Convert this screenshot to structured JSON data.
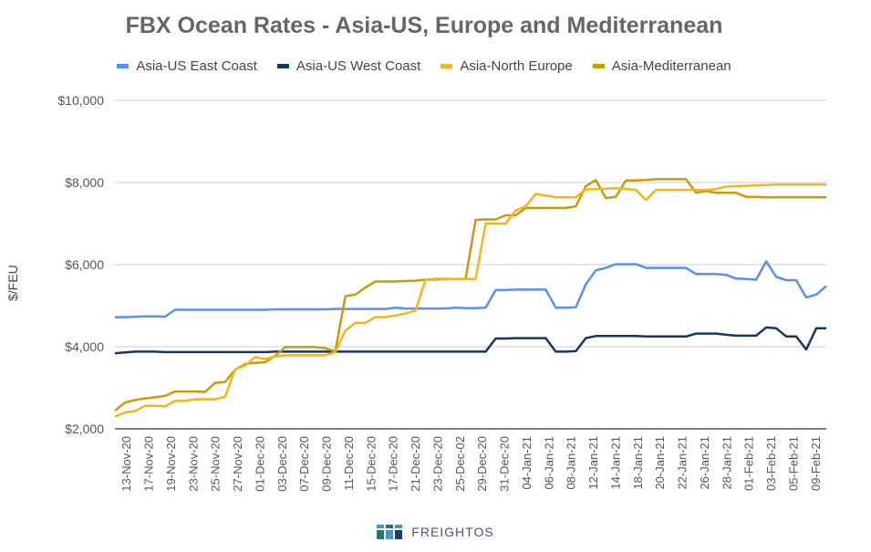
{
  "colors": {
    "east": "#5b8ff0",
    "west": "#19365e",
    "neu": "#f4b51c",
    "med": "#c99a0d",
    "grid": "#cccccc",
    "axis": "#555555"
  },
  "chart_data": {
    "type": "line",
    "title": "FBX Ocean Rates - Asia-US, Europe and Mediterranean",
    "ylabel": "$/FEU",
    "xlabel": "",
    "ylim": [
      2000,
      10000
    ],
    "yticks": [
      2000,
      4000,
      6000,
      8000,
      10000
    ],
    "ytick_labels": [
      "$2,000",
      "$4,000",
      "$6,000",
      "$8,000",
      "$10,000"
    ],
    "grid": true,
    "legend_position": "top",
    "x_tick_labels": [
      "13-Nov-20",
      "17-Nov-20",
      "19-Nov-20",
      "23-Nov-20",
      "25-Nov-20",
      "27-Nov-20",
      "01-Dec-20",
      "03-Dec-20",
      "07-Dec-20",
      "09-Dec-20",
      "11-Dec-20",
      "15-Dec-20",
      "17-Dec-20",
      "21-Dec-20",
      "23-Dec-20",
      "25-Dec-02",
      "29-Dec-20",
      "31-Dec-20",
      "04-Jan-21",
      "06-Jan-21",
      "08-Jan-21",
      "12-Jan-21",
      "14-Jan-21",
      "18-Jan-21",
      "20-Jan-21",
      "22-Jan-21",
      "26-Jan-21",
      "28-Jan-21",
      "01-Feb-21",
      "03-Feb-21",
      "05-Feb-21",
      "09-Feb-21"
    ],
    "series": [
      {
        "name": "Asia-US East Coast",
        "values": [
          4720,
          4720,
          4730,
          4740,
          4740,
          4730,
          4900,
          4900,
          4900,
          4900,
          4900,
          4900,
          4900,
          4900,
          4900,
          4900,
          4910,
          4910,
          4910,
          4910,
          4910,
          4910,
          4920,
          4920,
          4920,
          4920,
          4920,
          4920,
          4950,
          4930,
          4930,
          4930,
          4930,
          4930,
          4950,
          4940,
          4940,
          4950,
          5380,
          5380,
          5390,
          5390,
          5390,
          5390,
          4950,
          4950,
          4960,
          5520,
          5860,
          5920,
          6010,
          6010,
          6010,
          5920,
          5920,
          5920,
          5920,
          5920,
          5770,
          5770,
          5770,
          5750,
          5660,
          5650,
          5630,
          6080,
          5700,
          5620,
          5620,
          5200,
          5270,
          5480
        ]
      },
      {
        "name": "Asia-US West Coast",
        "values": [
          3840,
          3860,
          3880,
          3880,
          3880,
          3870,
          3870,
          3870,
          3870,
          3870,
          3870,
          3870,
          3870,
          3870,
          3870,
          3870,
          3880,
          3880,
          3880,
          3880,
          3880,
          3880,
          3880,
          3880,
          3880,
          3880,
          3880,
          3880,
          3880,
          3880,
          3880,
          3880,
          3880,
          3880,
          3880,
          3880,
          3880,
          3880,
          4200,
          4200,
          4210,
          4210,
          4210,
          4210,
          3880,
          3880,
          3890,
          4210,
          4260,
          4260,
          4260,
          4260,
          4260,
          4250,
          4250,
          4250,
          4250,
          4250,
          4320,
          4320,
          4320,
          4290,
          4270,
          4270,
          4270,
          4470,
          4450,
          4250,
          4250,
          3930,
          4450,
          4450
        ]
      },
      {
        "name": "Asia-North Europe",
        "values": [
          2300,
          2400,
          2430,
          2560,
          2560,
          2550,
          2680,
          2680,
          2720,
          2720,
          2720,
          2780,
          3450,
          3540,
          3750,
          3700,
          3760,
          3790,
          3790,
          3790,
          3790,
          3790,
          3870,
          4390,
          4580,
          4580,
          4720,
          4720,
          4760,
          4810,
          4880,
          5630,
          5630,
          5640,
          5650,
          5650,
          5650,
          7000,
          7000,
          7000,
          7320,
          7420,
          7720,
          7680,
          7640,
          7640,
          7640,
          7830,
          7840,
          7850,
          7860,
          7840,
          7820,
          7570,
          7820,
          7820,
          7820,
          7820,
          7820,
          7820,
          7840,
          7900,
          7910,
          7920,
          7930,
          7940,
          7950,
          7950,
          7950,
          7950,
          7950,
          7950
        ]
      },
      {
        "name": "Asia-Mediterranean",
        "values": [
          2440,
          2640,
          2700,
          2740,
          2770,
          2800,
          2910,
          2910,
          2910,
          2900,
          3120,
          3140,
          3440,
          3580,
          3610,
          3620,
          3780,
          3990,
          3990,
          3990,
          3990,
          3960,
          3890,
          5230,
          5270,
          5440,
          5590,
          5590,
          5590,
          5600,
          5610,
          5630,
          5650,
          5650,
          5650,
          5650,
          7090,
          7100,
          7100,
          7200,
          7200,
          7380,
          7380,
          7380,
          7380,
          7380,
          7420,
          7910,
          8060,
          7620,
          7650,
          8050,
          8050,
          8060,
          8080,
          8080,
          8080,
          8080,
          7750,
          7790,
          7750,
          7750,
          7750,
          7650,
          7650,
          7640,
          7640,
          7640,
          7640,
          7640,
          7640,
          7640
        ]
      }
    ]
  },
  "footer": {
    "brand": "FREIGHTOS"
  }
}
